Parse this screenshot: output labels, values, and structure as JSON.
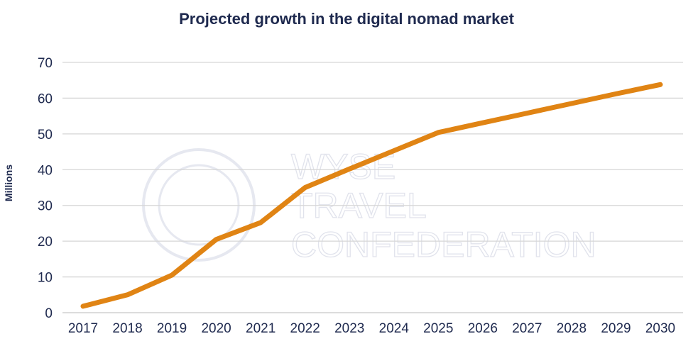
{
  "chart_data": {
    "type": "line",
    "title": "Projected growth in the digital nomad market",
    "xlabel": "",
    "ylabel": "Millions",
    "categories": [
      "2017",
      "2018",
      "2019",
      "2020",
      "2021",
      "2022",
      "2023",
      "2024",
      "2025",
      "2026",
      "2027",
      "2028",
      "2029",
      "2030"
    ],
    "series": [
      {
        "values": [
          1.8,
          5.0,
          10.5,
          20.5,
          25.2,
          35.0,
          40.2,
          45.3,
          50.4,
          53.1,
          55.8,
          58.5,
          61.2,
          63.8
        ],
        "color": "#e08414"
      }
    ],
    "ylim": [
      0,
      70
    ],
    "yticks": [
      0,
      10,
      20,
      30,
      40,
      50,
      60,
      70
    ],
    "grid": true,
    "legend": "none"
  },
  "watermark": {
    "lines": [
      "WYSE",
      "TRAVEL",
      "CONFEDERATION"
    ]
  }
}
